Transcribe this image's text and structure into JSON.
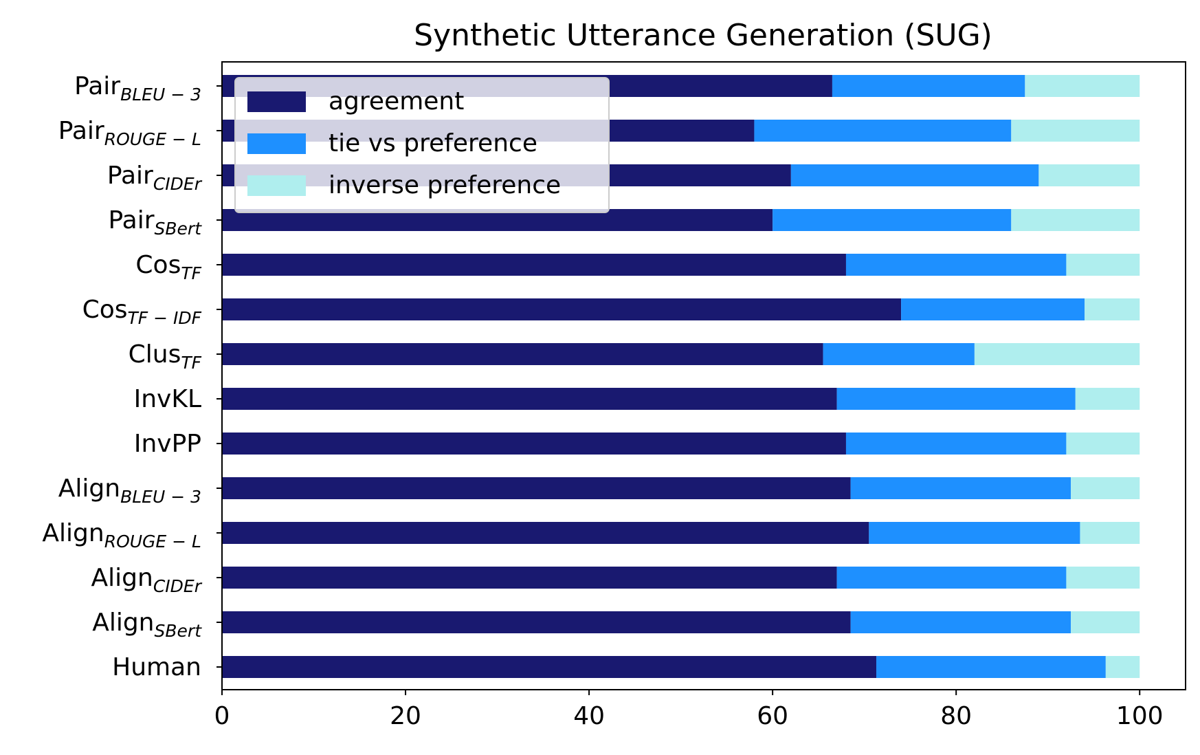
{
  "chart_data": {
    "type": "bar",
    "orientation": "horizontal",
    "stacked": true,
    "title": "Synthetic Utterance Generation (SUG)",
    "xlabel": "",
    "ylabel": "",
    "xlim": [
      0,
      105
    ],
    "xticks": [
      0,
      20,
      40,
      60,
      80,
      100
    ],
    "grid": false,
    "legend_position": "top-left",
    "categories": [
      {
        "base": "Pair",
        "sub": "BLEU − 3"
      },
      {
        "base": "Pair",
        "sub": "ROUGE − L"
      },
      {
        "base": "Pair",
        "sub": "CIDEr"
      },
      {
        "base": "Pair",
        "sub": "SBert"
      },
      {
        "base": "Cos",
        "sub": "TF"
      },
      {
        "base": "Cos",
        "sub": "TF − IDF"
      },
      {
        "base": "Clus",
        "sub": "TF"
      },
      {
        "base": "InvKL",
        "sub": ""
      },
      {
        "base": "InvPP",
        "sub": ""
      },
      {
        "base": "Align",
        "sub": "BLEU − 3"
      },
      {
        "base": "Align",
        "sub": "ROUGE − L"
      },
      {
        "base": "Align",
        "sub": "CIDEr"
      },
      {
        "base": "Align",
        "sub": "SBert"
      },
      {
        "base": "Human",
        "sub": ""
      }
    ],
    "series": [
      {
        "name": "agreement",
        "color": "#191970",
        "values": [
          66.5,
          58.0,
          62.0,
          60.0,
          68.0,
          74.0,
          65.5,
          67.0,
          68.0,
          68.5,
          70.5,
          67.0,
          68.5,
          71.3
        ]
      },
      {
        "name": "tie vs preference",
        "color": "#1e90ff",
        "values": [
          21.0,
          28.0,
          27.0,
          26.0,
          24.0,
          20.0,
          16.5,
          26.0,
          24.0,
          24.0,
          23.0,
          25.0,
          24.0,
          25.0
        ]
      },
      {
        "name": "inverse preference",
        "color": "#afeeee",
        "values": [
          12.5,
          14.0,
          11.0,
          14.0,
          8.0,
          6.0,
          18.0,
          7.0,
          8.0,
          7.5,
          6.5,
          8.0,
          7.5,
          3.7
        ]
      }
    ]
  }
}
